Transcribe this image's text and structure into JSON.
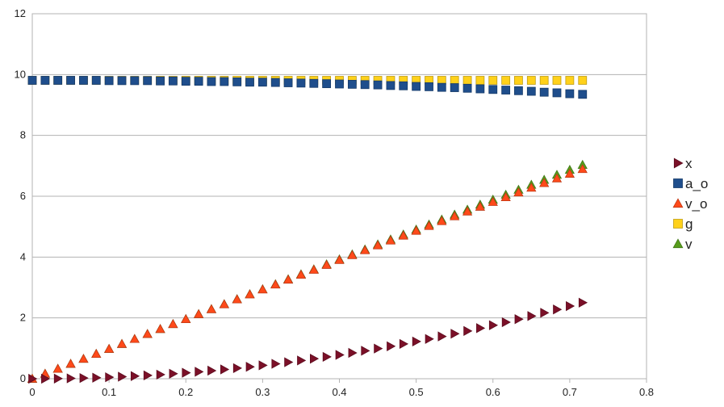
{
  "chart_data": {
    "type": "scatter",
    "title": "",
    "xlabel": "",
    "ylabel": "",
    "xlim": [
      0,
      0.8
    ],
    "ylim": [
      0,
      12
    ],
    "xticks": [
      "0",
      "0.1",
      "0.2",
      "0.3",
      "0.4",
      "0.5",
      "0.6",
      "0.7",
      "0.8"
    ],
    "yticks": [
      "0",
      "2",
      "4",
      "6",
      "8",
      "10",
      "12"
    ],
    "grid": "horizontal",
    "legend_position": "right",
    "x": [
      0,
      0.0167,
      0.0333,
      0.05,
      0.0667,
      0.0833,
      0.1,
      0.1167,
      0.1333,
      0.15,
      0.1667,
      0.1833,
      0.2,
      0.2167,
      0.2333,
      0.25,
      0.2667,
      0.2833,
      0.3,
      0.3167,
      0.3333,
      0.35,
      0.3667,
      0.3833,
      0.4,
      0.4167,
      0.4333,
      0.45,
      0.4667,
      0.4833,
      0.5,
      0.5167,
      0.5333,
      0.55,
      0.5667,
      0.5833,
      0.6,
      0.6167,
      0.6333,
      0.65,
      0.6667,
      0.6833,
      0.7,
      0.7167
    ],
    "series": [
      {
        "name": "x",
        "marker": "triangle-right",
        "color": "#7b1028",
        "values": [
          0,
          0.001,
          0.005,
          0.012,
          0.022,
          0.034,
          0.049,
          0.067,
          0.087,
          0.11,
          0.136,
          0.165,
          0.196,
          0.23,
          0.267,
          0.306,
          0.348,
          0.393,
          0.441,
          0.491,
          0.544,
          0.6,
          0.659,
          0.72,
          0.784,
          0.851,
          0.92,
          0.992,
          1.067,
          1.144,
          1.224,
          1.307,
          1.392,
          1.48,
          1.571,
          1.664,
          1.76,
          1.858,
          1.959,
          2.062,
          2.168,
          2.277,
          2.388,
          2.501
        ]
      },
      {
        "name": "a_o",
        "marker": "square",
        "color": "#1f4e8c",
        "values": [
          9.81,
          9.81,
          9.81,
          9.81,
          9.81,
          9.81,
          9.8,
          9.8,
          9.8,
          9.8,
          9.79,
          9.79,
          9.78,
          9.78,
          9.77,
          9.77,
          9.76,
          9.75,
          9.75,
          9.74,
          9.73,
          9.72,
          9.71,
          9.7,
          9.69,
          9.68,
          9.67,
          9.66,
          9.64,
          9.63,
          9.61,
          9.6,
          9.58,
          9.57,
          9.55,
          9.53,
          9.51,
          9.49,
          9.47,
          9.45,
          9.42,
          9.4,
          9.37,
          9.35
        ]
      },
      {
        "name": "v_o",
        "marker": "triangle-up",
        "color": "#ff4a1a",
        "values": [
          0,
          0.164,
          0.327,
          0.491,
          0.654,
          0.818,
          0.981,
          1.144,
          1.308,
          1.471,
          1.634,
          1.797,
          1.96,
          2.123,
          2.285,
          2.448,
          2.61,
          2.773,
          2.935,
          3.097,
          3.259,
          3.42,
          3.582,
          3.743,
          3.904,
          4.065,
          4.225,
          4.386,
          4.545,
          4.705,
          4.864,
          5.023,
          5.182,
          5.34,
          5.498,
          5.655,
          5.812,
          5.968,
          6.124,
          6.279,
          6.433,
          6.587,
          6.74,
          6.893
        ]
      },
      {
        "name": "g",
        "marker": "square",
        "color": "#ffd11a",
        "values": [
          9.81,
          9.81,
          9.81,
          9.81,
          9.81,
          9.81,
          9.81,
          9.81,
          9.81,
          9.81,
          9.81,
          9.81,
          9.81,
          9.81,
          9.81,
          9.81,
          9.81,
          9.81,
          9.81,
          9.81,
          9.81,
          9.81,
          9.81,
          9.81,
          9.81,
          9.81,
          9.81,
          9.81,
          9.81,
          9.81,
          9.81,
          9.81,
          9.81,
          9.81,
          9.81,
          9.81,
          9.81,
          9.81,
          9.81,
          9.81,
          9.81,
          9.81,
          9.81,
          9.81
        ]
      },
      {
        "name": "v",
        "marker": "triangle-up",
        "color": "#579d1c",
        "values": [
          0,
          0.164,
          0.327,
          0.491,
          0.654,
          0.818,
          0.981,
          1.145,
          1.308,
          1.472,
          1.635,
          1.798,
          1.962,
          2.125,
          2.289,
          2.453,
          2.616,
          2.78,
          2.943,
          3.107,
          3.27,
          3.434,
          3.597,
          3.761,
          3.924,
          4.088,
          4.251,
          4.415,
          4.578,
          4.742,
          4.905,
          5.069,
          5.232,
          5.396,
          5.559,
          5.723,
          5.886,
          6.05,
          6.213,
          6.377,
          6.54,
          6.704,
          6.867,
          7.031
        ]
      }
    ]
  }
}
